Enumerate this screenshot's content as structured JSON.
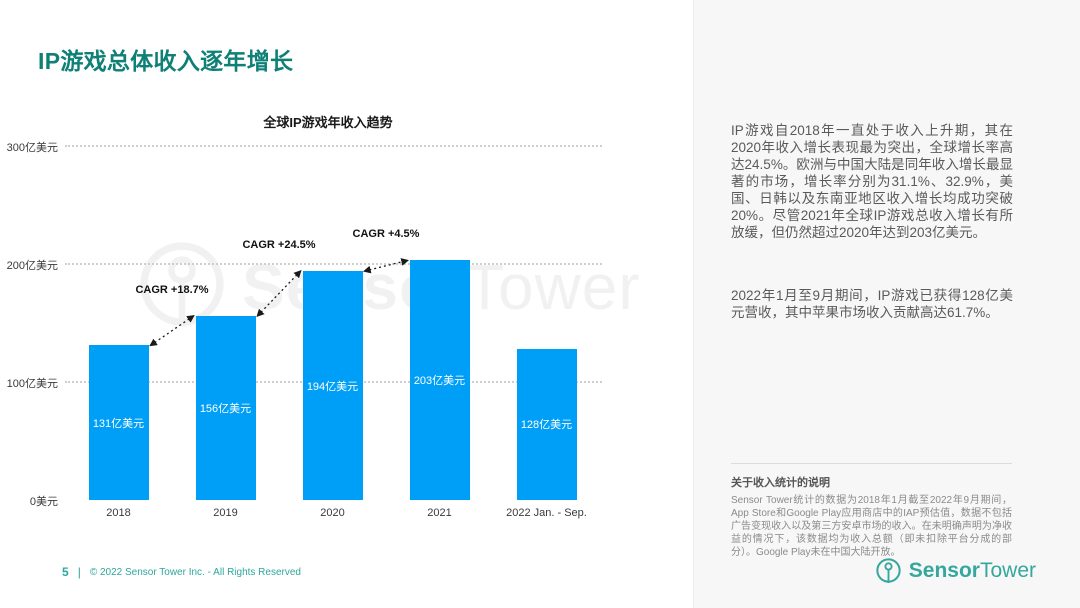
{
  "title": "IP游戏总体收入逐年增长",
  "chart_data": {
    "type": "bar",
    "title": "全球IP游戏年收入趋势",
    "categories": [
      "2018",
      "2019",
      "2020",
      "2021",
      "2022 Jan. - Sep."
    ],
    "values": [
      131,
      156,
      194,
      203,
      128
    ],
    "bar_labels": [
      "131亿美元",
      "156亿美元",
      "194亿美元",
      "203亿美元",
      "128亿美元"
    ],
    "unit": "亿美元",
    "ylim": [
      0,
      300
    ],
    "y_ticks": [
      {
        "value": 300,
        "label": "300亿美元"
      },
      {
        "value": 200,
        "label": "200亿美元"
      },
      {
        "value": 100,
        "label": "100亿美元"
      },
      {
        "value": 0,
        "label": "0美元"
      }
    ],
    "grid": "horizontal-dotted",
    "legend": "none",
    "bar_color": "#009ff7",
    "annotations": [
      {
        "label": "CAGR +18.7%",
        "from": 0,
        "to": 1
      },
      {
        "label": "CAGR +24.5%",
        "from": 1,
        "to": 2
      },
      {
        "label": "CAGR +4.5%",
        "from": 2,
        "to": 3
      }
    ]
  },
  "watermark": {
    "bold": "Sensor",
    "regular": "Tower"
  },
  "right_panel": {
    "paragraph1": "IP游戏自2018年一直处于收入上升期，其在2020年收入增长表现最为突出，全球增长率高达24.5%。欧洲与中国大陆是同年收入增长最显著的市场，增长率分别为31.1%、32.9%，美国、日韩以及东南亚地区收入增长均成功突破20%。尽管2021年全球IP游戏总收入增长有所放缓，但仍然超过2020年达到203亿美元。",
    "paragraph2": "2022年1月至9月期间，IP游戏已获得128亿美元营收，其中苹果市场收入贡献高达61.7%。",
    "footnote_title": "关于收入统计的说明",
    "footnote_body": "Sensor Tower统计的数据为2018年1月截至2022年9月期间，App Store和Google Play应用商店中的IAP预估值，数据不包括广告变现收入以及第三方安卓市场的收入。在未明确声明为净收益的情况下，该数据均为收入总额（即未扣除平台分成的部分）。Google Play未在中国大陆开放。"
  },
  "footer": {
    "page": "5",
    "separator": "|",
    "copyright": "© 2022 Sensor Tower Inc. - All Rights Reserved"
  },
  "logo": {
    "bold": "Sensor",
    "regular": "Tower"
  },
  "colors": {
    "title_teal": "#0e8076",
    "brand_teal": "#35a79e",
    "footer_teal": "#2ea69e",
    "bar_blue": "#009ff7",
    "panel_bg": "#f7f7f7",
    "body_text": "#5a5a5a"
  }
}
